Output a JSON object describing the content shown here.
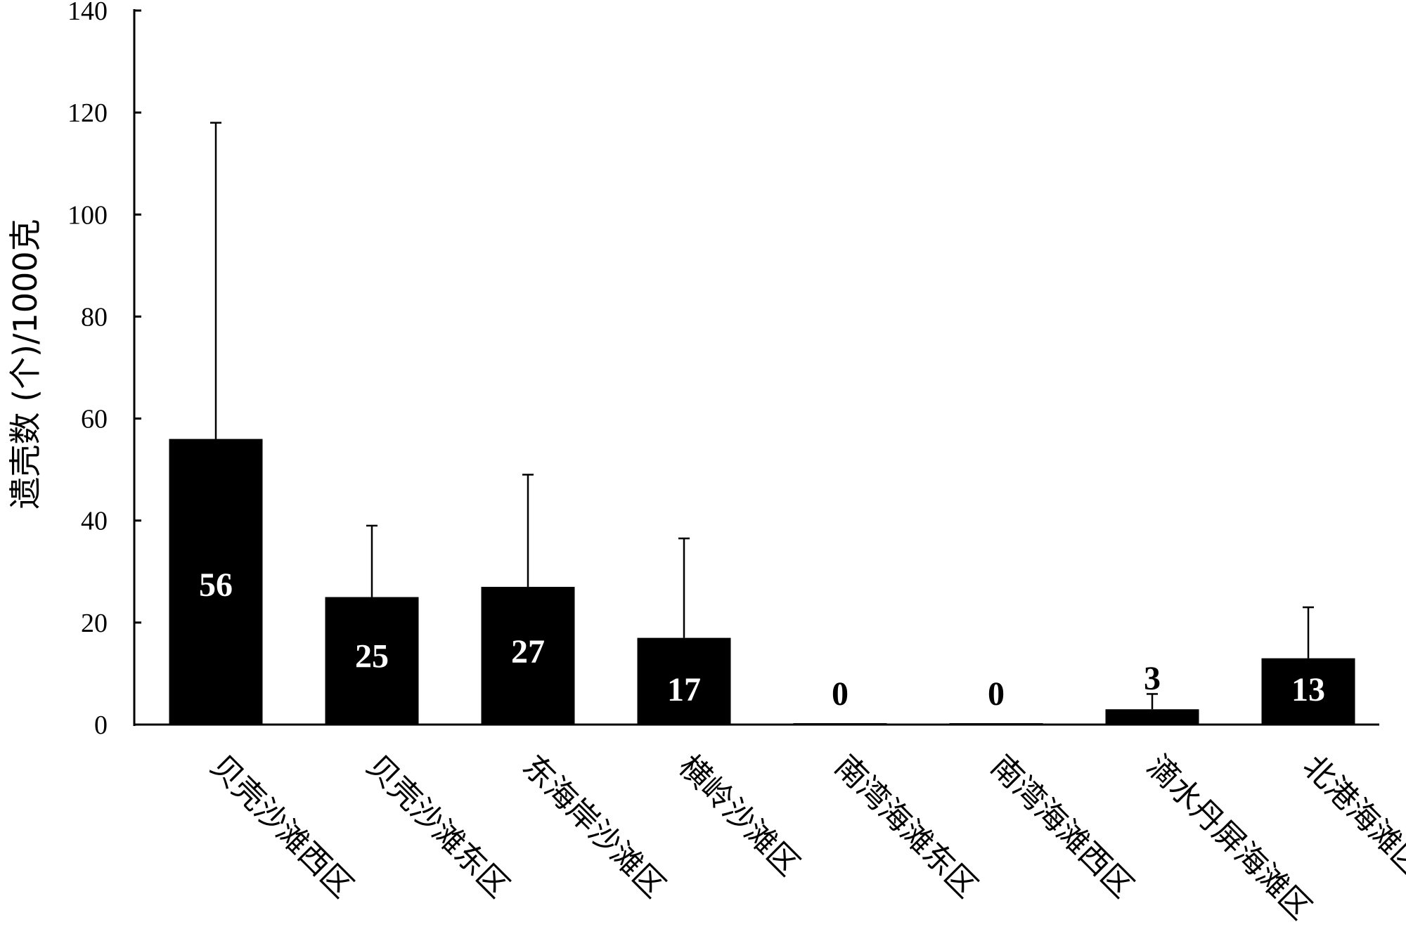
{
  "chart_data": {
    "type": "bar",
    "title": "",
    "xlabel": "",
    "ylabel": "遗壳数 (个)/1000克",
    "ylim": [
      0,
      140
    ],
    "yticks": [
      0,
      20,
      40,
      60,
      80,
      100,
      120,
      140
    ],
    "grid": false,
    "categories": [
      "贝壳沙滩西区",
      "贝壳沙滩东区",
      "东海岸沙滩区",
      "横岭沙滩区",
      "南湾海滩东区",
      "南湾海滩西区",
      "滴水丹屏海滩区",
      "北港海滩区"
    ],
    "values": [
      56,
      25,
      27,
      17,
      0,
      0,
      3,
      13
    ],
    "error_upper": [
      118,
      39,
      49,
      36.5,
      0,
      0,
      6,
      23
    ],
    "data_labels": [
      "56",
      "25",
      "27",
      "17",
      "0",
      "0",
      "3",
      "13"
    ],
    "colors": {
      "bar": "#000000",
      "label_inside": "#ffffff",
      "label_outside": "#000000"
    }
  }
}
